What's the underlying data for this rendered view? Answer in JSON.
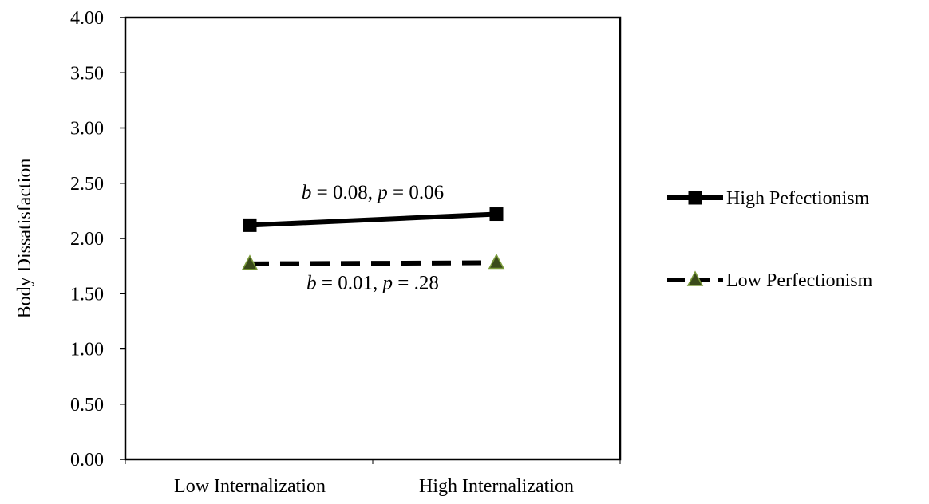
{
  "chart_data": {
    "type": "line",
    "title": "",
    "xlabel": "",
    "ylabel": "Body Dissatisfaction",
    "categories": [
      "Low Internalization",
      "High Internalization"
    ],
    "ylim": [
      0,
      4
    ],
    "yticks": [
      "0.00",
      "0.50",
      "1.00",
      "1.50",
      "2.00",
      "2.50",
      "3.00",
      "3.50",
      "4.00"
    ],
    "grid": false,
    "legend_position": "right",
    "series": [
      {
        "name": "High Pefectionism",
        "values": [
          2.12,
          2.22
        ],
        "line_style": "solid",
        "marker": "square",
        "color": "#000000",
        "marker_color": "#000000"
      },
      {
        "name": "Low Perfectionism",
        "values": [
          1.77,
          1.78
        ],
        "line_style": "dashed",
        "marker": "triangle",
        "color": "#000000",
        "marker_color": "#3a4a1a"
      }
    ],
    "annotations": [
      {
        "b_label": "b",
        "b_value": " = 0.08, ",
        "p_label": "p",
        "p_value": " = 0.06",
        "y": 2.42
      },
      {
        "b_label": "b",
        "b_value": " = 0.01, ",
        "p_label": "p",
        "p_value": " = .28",
        "y": 1.6
      }
    ]
  }
}
